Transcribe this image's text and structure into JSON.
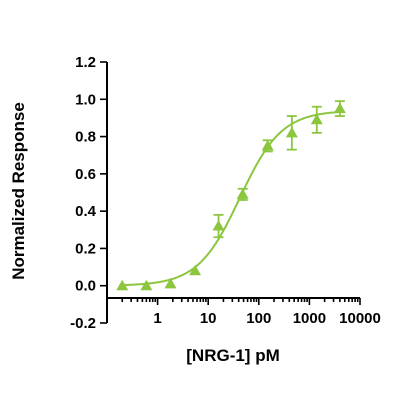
{
  "chart_data": {
    "type": "scatter",
    "title": "",
    "xlabel": "[NRG-1] pM",
    "ylabel": "Normalized Response",
    "x_scale": "log",
    "xlim": [
      0.1,
      10000
    ],
    "ylim": [
      -0.2,
      1.2
    ],
    "x_ticks": [
      1,
      10,
      100,
      1000,
      10000
    ],
    "x_tick_labels": [
      "1",
      "10",
      "100",
      "1000",
      "10000"
    ],
    "y_ticks": [
      -0.2,
      0.0,
      0.2,
      0.4,
      0.6,
      0.8,
      1.0,
      1.2
    ],
    "y_tick_labels": [
      "-0.2",
      "0.0",
      "0.2",
      "0.4",
      "0.6",
      "0.8",
      "1.0",
      "1.2"
    ],
    "grid": false,
    "legend": "none",
    "color": "#8cc63f",
    "marker": "triangle",
    "fit": {
      "model": "four-parameter logistic",
      "bottom": 0.0,
      "top": 0.94,
      "ec50": 42,
      "hill": 1.05
    },
    "series": [
      {
        "points": [
          {
            "x": 0.2,
            "y": 0.0,
            "err": 0.0
          },
          {
            "x": 0.6,
            "y": 0.0,
            "err": 0.0
          },
          {
            "x": 1.8,
            "y": 0.01,
            "err": 0.0
          },
          {
            "x": 5.5,
            "y": 0.08,
            "err": 0.0
          },
          {
            "x": 16,
            "y": 0.32,
            "err": 0.06
          },
          {
            "x": 48,
            "y": 0.49,
            "err": 0.03
          },
          {
            "x": 150,
            "y": 0.75,
            "err": 0.03
          },
          {
            "x": 450,
            "y": 0.82,
            "err": 0.09
          },
          {
            "x": 1400,
            "y": 0.89,
            "err": 0.07
          },
          {
            "x": 4000,
            "y": 0.95,
            "err": 0.04
          }
        ]
      }
    ]
  }
}
